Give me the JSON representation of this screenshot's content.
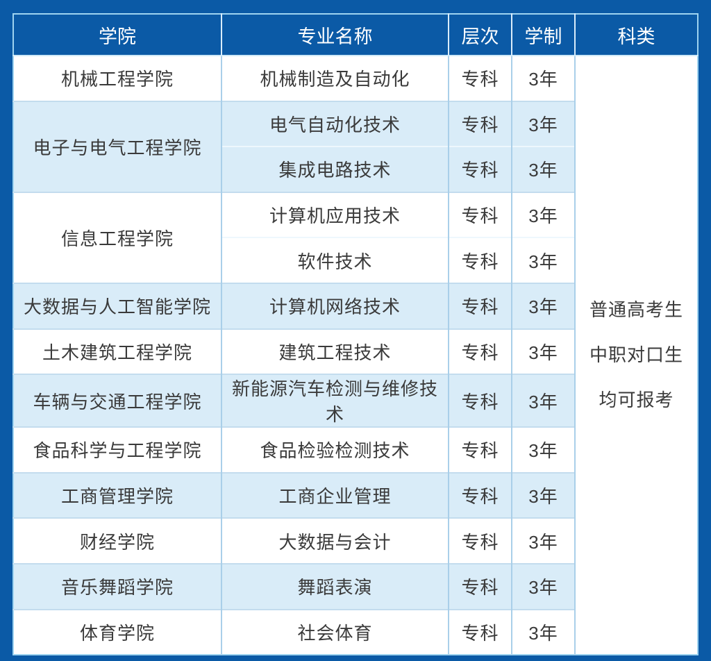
{
  "page": {
    "background_color": "#0b5aa6"
  },
  "table": {
    "columns": [
      {
        "id": "college",
        "label": "学院"
      },
      {
        "id": "major",
        "label": "专业名称"
      },
      {
        "id": "level",
        "label": "层次"
      },
      {
        "id": "duration",
        "label": "学制"
      },
      {
        "id": "category",
        "label": "科类"
      }
    ],
    "groups": [
      {
        "college": "机械工程学院",
        "shade": "white",
        "majors": [
          {
            "name": "机械制造及自动化",
            "level": "专科",
            "duration": "3年"
          }
        ]
      },
      {
        "college": "电子与电气工程学院",
        "shade": "blue",
        "majors": [
          {
            "name": "电气自动化技术",
            "level": "专科",
            "duration": "3年"
          },
          {
            "name": "集成电路技术",
            "level": "专科",
            "duration": "3年"
          }
        ]
      },
      {
        "college": "信息工程学院",
        "shade": "white",
        "majors": [
          {
            "name": "计算机应用技术",
            "level": "专科",
            "duration": "3年"
          },
          {
            "name": "软件技术",
            "level": "专科",
            "duration": "3年"
          }
        ]
      },
      {
        "college": "大数据与人工智能学院",
        "shade": "blue",
        "majors": [
          {
            "name": "计算机网络技术",
            "level": "专科",
            "duration": "3年"
          }
        ]
      },
      {
        "college": "土木建筑工程学院",
        "shade": "white",
        "majors": [
          {
            "name": "建筑工程技术",
            "level": "专科",
            "duration": "3年"
          }
        ]
      },
      {
        "college": "车辆与交通工程学院",
        "shade": "blue",
        "majors": [
          {
            "name": "新能源汽车检测与维修技术",
            "level": "专科",
            "duration": "3年"
          }
        ]
      },
      {
        "college": "食品科学与工程学院",
        "shade": "white",
        "majors": [
          {
            "name": "食品检验检测技术",
            "level": "专科",
            "duration": "3年"
          }
        ]
      },
      {
        "college": "工商管理学院",
        "shade": "blue",
        "majors": [
          {
            "name": "工商企业管理",
            "level": "专科",
            "duration": "3年"
          }
        ]
      },
      {
        "college": "财经学院",
        "shade": "white",
        "majors": [
          {
            "name": "大数据与会计",
            "level": "专科",
            "duration": "3年"
          }
        ]
      },
      {
        "college": "音乐舞蹈学院",
        "shade": "blue",
        "majors": [
          {
            "name": "舞蹈表演",
            "level": "专科",
            "duration": "3年"
          }
        ]
      },
      {
        "college": "体育学院",
        "shade": "white",
        "majors": [
          {
            "name": "社会体育",
            "level": "专科",
            "duration": "3年"
          }
        ]
      }
    ],
    "category_lines": [
      "普通高考生",
      "中职对口生",
      "均可报考"
    ]
  },
  "colors": {
    "background": "#0b5aa6",
    "header_background": "#0b5aa6",
    "header_text": "#ffffff",
    "body_text": "#3a3a3a",
    "row_white": "#ffffff",
    "row_blue": "#d9ecf8",
    "outer_border": "#9fd4f0",
    "vertical_line": "#a9cfe9",
    "group_divider": "#c3dcee",
    "subrow_divider": "#eef7fd",
    "header_divider": "#cfe9f8"
  }
}
